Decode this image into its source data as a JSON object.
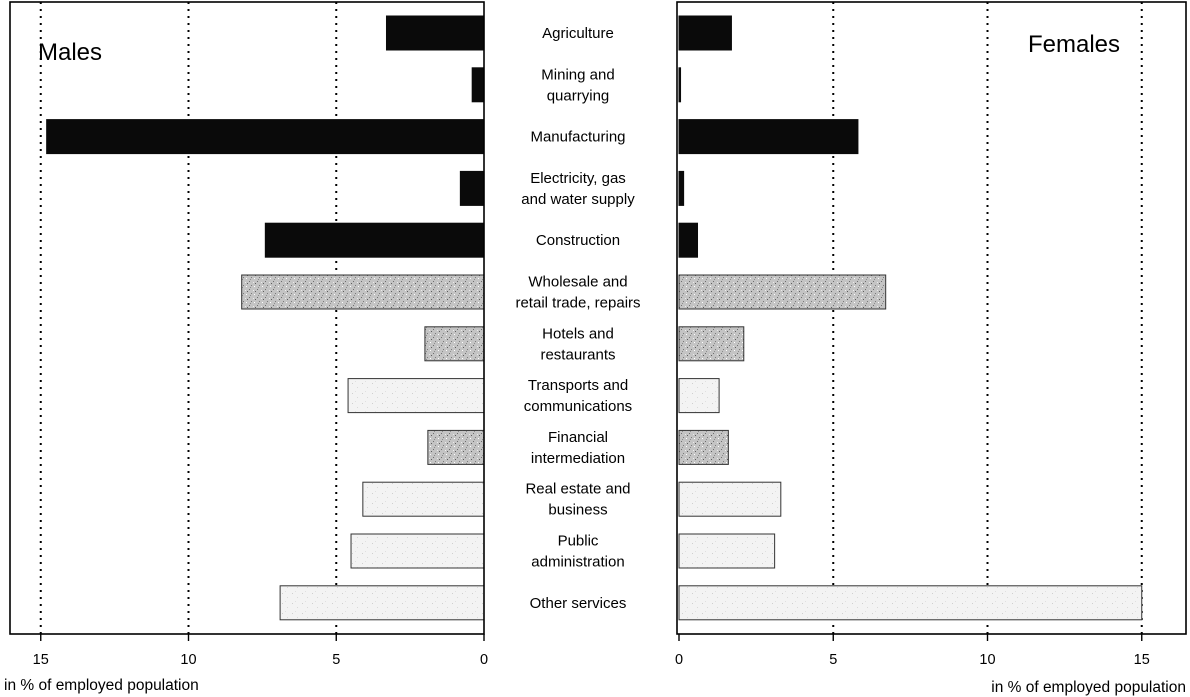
{
  "chart_data": {
    "type": "bar",
    "orientation": "horizontal",
    "layout": "back-to-back",
    "categories": [
      [
        "Agriculture"
      ],
      [
        "Mining and",
        "quarrying"
      ],
      [
        "Manufacturing"
      ],
      [
        "Electricity, gas",
        "and water supply"
      ],
      [
        "Construction"
      ],
      [
        "Wholesale and",
        "retail trade, repairs"
      ],
      [
        "Hotels and",
        "restaurants"
      ],
      [
        "Transports and",
        "communications"
      ],
      [
        "Financial",
        "intermediation"
      ],
      [
        "Real estate and",
        "business"
      ],
      [
        "Public",
        "administration"
      ],
      [
        "Other services"
      ]
    ],
    "category_shading": [
      "dark",
      "dark",
      "dark",
      "dark",
      "dark",
      "medium",
      "medium",
      "light",
      "medium",
      "light",
      "light",
      "light"
    ],
    "series": [
      {
        "name": "Males",
        "side": "left",
        "values": [
          3.3,
          0.4,
          14.8,
          0.8,
          7.4,
          8.2,
          2.0,
          4.6,
          1.9,
          4.1,
          4.5,
          6.9
        ]
      },
      {
        "name": "Females",
        "side": "right",
        "values": [
          1.7,
          0.05,
          5.8,
          0.15,
          0.6,
          6.7,
          2.1,
          1.3,
          1.6,
          3.3,
          3.1,
          15.0
        ]
      }
    ],
    "xlim": [
      0,
      15
    ],
    "ticks": [
      0,
      5,
      10,
      15
    ],
    "tick_labels": [
      "0",
      "5",
      "10",
      "15"
    ],
    "gridlines": [
      5,
      10,
      15
    ],
    "grid_style": "dotted",
    "xlabel": "in % of employed population",
    "ylabel": "",
    "legend": "none",
    "colors": {
      "dark": "#0a0a0a",
      "medium": "#b8b8b8",
      "light": "#f0f0f0",
      "grid": "#000000",
      "background": "#ffffff"
    }
  }
}
